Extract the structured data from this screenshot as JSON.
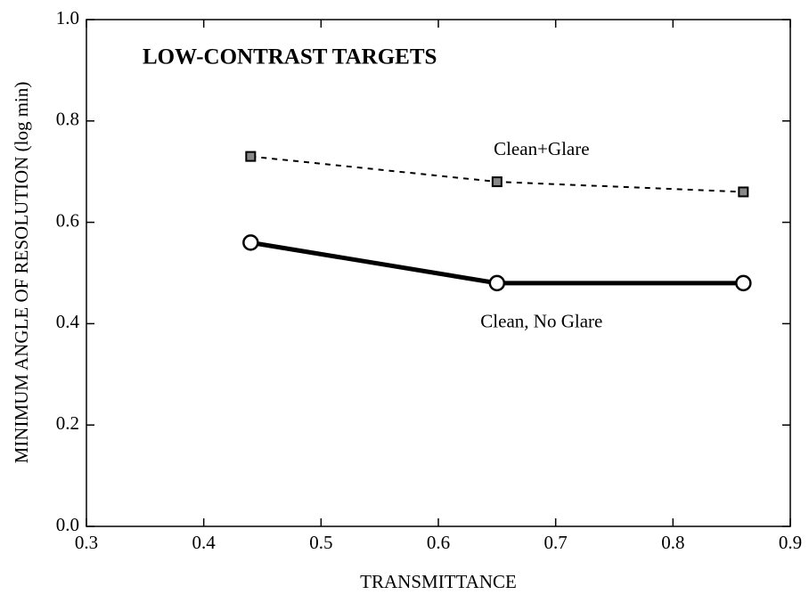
{
  "chart_data": {
    "type": "line",
    "title": "LOW-CONTRAST TARGETS",
    "x_label": "TRANSMITTANCE",
    "y_label": "MINIMUM ANGLE OF RESOLUTION (log min)",
    "xlim": [
      0.3,
      0.9
    ],
    "xticks": [
      {
        "value": 0.3,
        "label": "0.3"
      },
      0.4,
      0.5,
      0.6,
      0.7,
      0.8,
      {
        "value": 0.9,
        "label": "0.9"
      }
    ],
    "ylim": [
      0,
      1
    ],
    "yticks": [
      {
        "value": 0,
        "label": "0.0"
      },
      0.2,
      0.4,
      0.6,
      0.8,
      {
        "value": 1,
        "label": "1.0"
      }
    ],
    "series": [
      {
        "name": "Clean+Glare",
        "color": "#000000",
        "line_style": "dashed",
        "marker": "square",
        "x": [
          0.44,
          0.65,
          0.86
        ],
        "values": [
          0.73,
          0.68,
          0.66
        ]
      },
      {
        "name": "Clean, No Glare",
        "color": "#000000",
        "line_style": "solid",
        "marker": "circle",
        "x": [
          0.44,
          0.65,
          0.86
        ],
        "values": [
          0.56,
          0.48,
          0.48
        ]
      }
    ]
  }
}
